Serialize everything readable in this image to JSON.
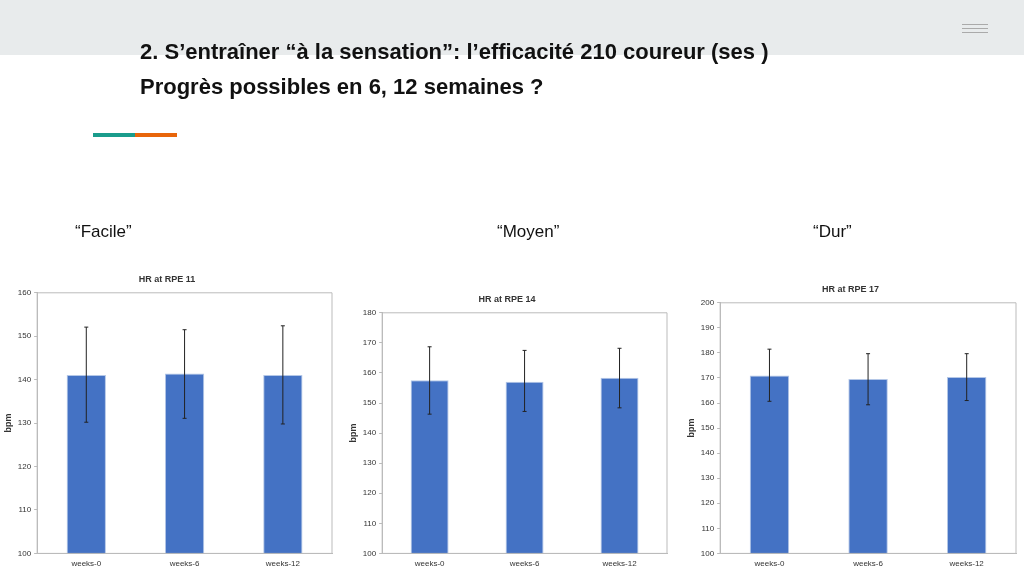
{
  "chart_data": [
    {
      "type": "bar",
      "title": "HR at RPE 11",
      "subtitle": "“Facile”",
      "ylabel": "bpm",
      "annotations": [
        "2. S’entraîner “à la sensation”: l’efficacité 210 coureur (ses )",
        "Progrès possibles en 6, 12 semaines ?"
      ],
      "categories": [
        "weeks-0",
        "weeks-6",
        "weeks-12"
      ],
      "values": [
        141.1,
        141.4,
        141.1
      ],
      "color": "#4472c4",
      "errors": [
        [
          130.2,
          152.1
        ],
        [
          131.1,
          151.5
        ],
        [
          129.8,
          152.4
        ]
      ],
      "ylim": [
        100,
        160
      ],
      "yticks": [
        100,
        110,
        120,
        130,
        140,
        150,
        160
      ],
      "grid": false,
      "legend": false
    },
    {
      "type": "bar",
      "title": "HR at RPE 14",
      "subtitle": "“Moyen”",
      "ylabel": "bpm",
      "categories": [
        "weeks-0",
        "weeks-6",
        "weeks-12"
      ],
      "values": [
        157.6,
        157.1,
        158.4
      ],
      "color": "#4472c4",
      "errors": [
        [
          146.3,
          168.7
        ],
        [
          147.2,
          167.5
        ],
        [
          148.4,
          168.2
        ]
      ],
      "ylim": [
        100,
        180
      ],
      "yticks": [
        100,
        110,
        120,
        130,
        140,
        150,
        160,
        170,
        180
      ],
      "grid": false,
      "legend": false
    },
    {
      "type": "bar",
      "title": "HR at RPE 17",
      "subtitle": "“Dur”",
      "ylabel": "bpm",
      "categories": [
        "weeks-0",
        "weeks-6",
        "weeks-12"
      ],
      "values": [
        171.0,
        169.6,
        170.4
      ],
      "color": "#4472c4",
      "errors": [
        [
          160.7,
          181.5
        ],
        [
          159.3,
          179.7
        ],
        [
          161.0,
          179.7
        ]
      ],
      "ylim": [
        100,
        200
      ],
      "yticks": [
        100,
        110,
        120,
        130,
        140,
        150,
        160,
        170,
        180,
        190,
        200
      ],
      "grid": false,
      "legend": false
    }
  ]
}
